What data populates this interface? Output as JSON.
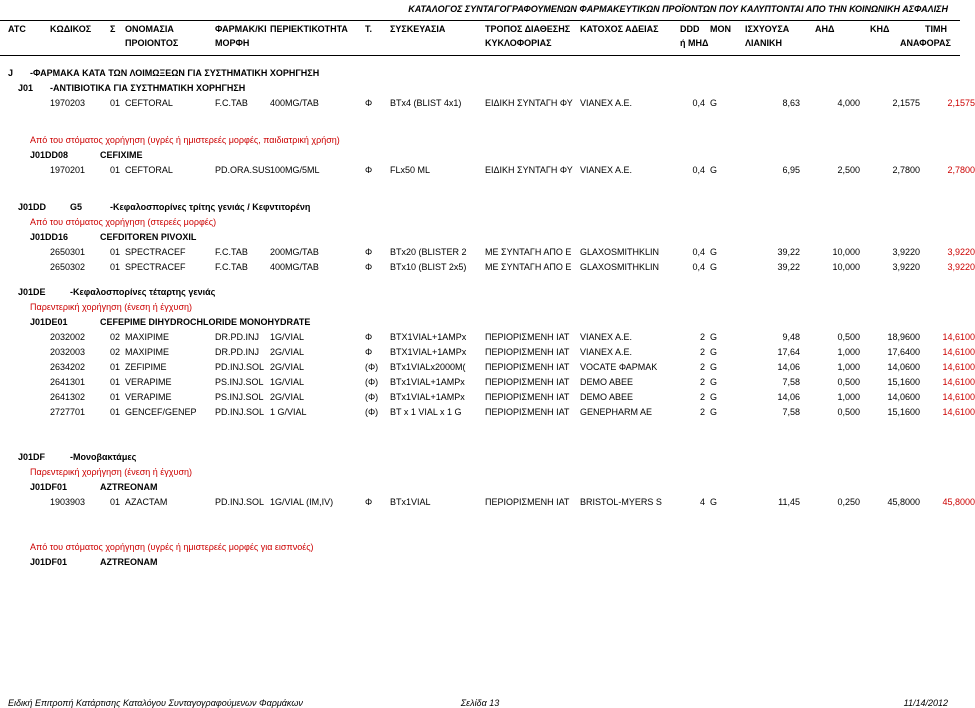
{
  "page_title": "ΚΑΤΑΛΟΓΟΣ ΣΥΝΤΑΓΟΓΡΑΦΟΥΜΕΝΩΝ ΦΑΡΜΑΚΕΥΤΙΚΩΝ ΠΡΟΪΟΝΤΩΝ ΠΟΥ ΚΑΛΥΠΤΟΝΤΑΙ ΑΠΟ ΤΗΝ ΚΟΙΝΩΝΙΚΗ ΑΣΦΑΛΙΣΗ",
  "headers": {
    "atc": "ATC",
    "kodikos": "ΚΩΔΙΚΟΣ",
    "s": "Σ",
    "onomasia": "ΟΝΟΜΑΣΙΑ",
    "product": "ΠΡΟΙΟΝΤΟΣ",
    "farmak": "ΦΑΡΜΑΚ/ΚΙ",
    "morfi": "ΜΟΡΦΗ",
    "periektikotita": "ΠΕΡΙΕΚΤΙΚΟΤΗΤΑ",
    "t": "Τ.",
    "syskevasia": "ΣΥΣΚΕΥΑΣΙΑ",
    "tropos": "ΤΡΟΠΟΣ ΔΙΑΘΕΣΗΣ",
    "kykloforia": "ΚΥΚΛΟΦΟΡΙΑΣ",
    "katoxos": "ΚΑΤΟΧΟΣ ΑΔΕΙΑΣ",
    "ddd": "DDD",
    "mon": "ΜΟΝ",
    "imhd": "ή ΜΗΔ",
    "isxyousa": "ΙΣΧΥΟΥΣΑ",
    "lianiki": "ΛΙΑΝΙΚΗ",
    "ahd": "ΑΗΔ",
    "khd": "ΚΗΔ",
    "timi": "ΤΙΜΗ",
    "anaforas": "ΑΝΑΦΟΡΑΣ"
  },
  "sec_j": {
    "code": "J",
    "text": "-ΦΑΡΜΑΚΑ ΚΑΤΑ ΤΩΝ ΛΟΙΜΩΞΕΩΝ ΓΙΑ ΣΥΣΤΗΜΑΤΙΚΗ ΧΟΡΗΓΗΣΗ"
  },
  "sec_j01": {
    "code": "J01",
    "text": "-ΑΝΤΙΒΙΟΤΙΚΑ ΓΙΑ ΣΥΣΤΗΜΑΤΙΚΗ ΧΟΡΗΓΗΣΗ"
  },
  "r1": {
    "kod": "1970203",
    "s": "01",
    "name": "CEFTORAL",
    "form": "F.C.TAB",
    "per": "400MG/TAB",
    "t": "Φ",
    "sys": "BTx4 (BLIST 4x1)",
    "trop": "ΕΙΔΙΚΗ ΣΥΝΤΑΓΗ ΦΥ",
    "kat": "VIANEX A.E.",
    "ddd": "0,4",
    "mon": "G",
    "isx": "8,63",
    "ahd": "4,000",
    "khd": "2,1575",
    "timi": "2,1575"
  },
  "note1": "Από του στόματος χορήγηση (υγρές ή ημιστερεές μορφές, παιδιατρική χρήση)",
  "sec_j01dd08": {
    "code": "J01DD08",
    "text": "CEFIXIME"
  },
  "r2": {
    "kod": "1970201",
    "s": "01",
    "name": "CEFTORAL",
    "form": "PD.ORA.SUS",
    "per": "100MG/5ML",
    "t": "Φ",
    "sys": "FLx50 ML",
    "trop": "ΕΙΔΙΚΗ ΣΥΝΤΑΓΗ ΦΥ",
    "kat": "VIANEX A.E.",
    "ddd": "0,4",
    "mon": "G",
    "isx": "6,95",
    "ahd": "2,500",
    "khd": "2,7800",
    "timi": "2,7800"
  },
  "sec_j01dd_g5": {
    "code": "J01DD",
    "g": "G5",
    "text": "-Κεφαλοσπορίνες τρίτης γενιάς / Κεφντιτορένη"
  },
  "note2": "Από του στόματος χορήγηση (στερεές μορφές)",
  "sec_j01dd16": {
    "code": "J01DD16",
    "text": "CEFDITOREN PIVOXIL"
  },
  "r3": {
    "kod": "2650301",
    "s": "01",
    "name": "SPECTRACEF",
    "form": "F.C.TAB",
    "per": "200MG/TAB",
    "t": "Φ",
    "sys": "BTx20 (BLISTER 2",
    "trop": "ΜΕ ΣΥΝΤΑΓΗ ΑΠΟ Ε",
    "kat": "GLAXOSMITHKLIN",
    "ddd": "0,4",
    "mon": "G",
    "isx": "39,22",
    "ahd": "10,000",
    "khd": "3,9220",
    "timi": "3,9220"
  },
  "r4": {
    "kod": "2650302",
    "s": "01",
    "name": "SPECTRACEF",
    "form": "F.C.TAB",
    "per": "400MG/TAB",
    "t": "Φ",
    "sys": "BTx10 (BLIST 2x5)",
    "trop": "ΜΕ ΣΥΝΤΑΓΗ ΑΠΟ Ε",
    "kat": "GLAXOSMITHKLIN",
    "ddd": "0,4",
    "mon": "G",
    "isx": "39,22",
    "ahd": "10,000",
    "khd": "3,9220",
    "timi": "3,9220"
  },
  "sec_j01de": {
    "code": "J01DE",
    "text": "-Κεφαλοσπορίνες τέταρτης γενιάς"
  },
  "note3": "Παρεντερική χορήγηση (ένεση ή έγχυση)",
  "sec_j01de01": {
    "code": "J01DE01",
    "text": "CEFEPIME DIHYDROCHLORIDE MONOHYDRATE"
  },
  "r5": {
    "kod": "2032002",
    "s": "02",
    "name": "MAXIPIME",
    "form": "DR.PD.INJ",
    "per": "1G/VIAL",
    "t": "Φ",
    "sys": "BTX1VIAL+1AMPx",
    "trop": "ΠΕΡΙΟΡΙΣΜΕΝΗ ΙΑΤ",
    "kat": "VIANEX A.E.",
    "ddd": "2",
    "mon": "G",
    "isx": "9,48",
    "ahd": "0,500",
    "khd": "18,9600",
    "timi": "14,6100"
  },
  "r6": {
    "kod": "2032003",
    "s": "02",
    "name": "MAXIPIME",
    "form": "DR.PD.INJ",
    "per": "2G/VIAL",
    "t": "Φ",
    "sys": "BTX1VIAL+1AMPx",
    "trop": "ΠΕΡΙΟΡΙΣΜΕΝΗ ΙΑΤ",
    "kat": "VIANEX A.E.",
    "ddd": "2",
    "mon": "G",
    "isx": "17,64",
    "ahd": "1,000",
    "khd": "17,6400",
    "timi": "14,6100"
  },
  "r7": {
    "kod": "2634202",
    "s": "01",
    "name": "ZEFIPIME",
    "form": "PD.INJ.SOL",
    "per": "2G/VIAL",
    "t": "(Φ)",
    "sys": "BTx1VIALx2000M(",
    "trop": "ΠΕΡΙΟΡΙΣΜΕΝΗ ΙΑΤ",
    "kat": "VOCATE ΦΑΡΜΑΚ",
    "ddd": "2",
    "mon": "G",
    "isx": "14,06",
    "ahd": "1,000",
    "khd": "14,0600",
    "timi": "14,6100"
  },
  "r8": {
    "kod": "2641301",
    "s": "01",
    "name": "VERAPIME",
    "form": "PS.INJ.SOL",
    "per": "1G/VIAL",
    "t": "(Φ)",
    "sys": "BTx1VIAL+1AMPx",
    "trop": "ΠΕΡΙΟΡΙΣΜΕΝΗ ΙΑΤ",
    "kat": "DEMO ABEE",
    "ddd": "2",
    "mon": "G",
    "isx": "7,58",
    "ahd": "0,500",
    "khd": "15,1600",
    "timi": "14,6100"
  },
  "r9": {
    "kod": "2641302",
    "s": "01",
    "name": "VERAPIME",
    "form": "PS.INJ.SOL",
    "per": "2G/VIAL",
    "t": "(Φ)",
    "sys": "BTx1VIAL+1AMPx",
    "trop": "ΠΕΡΙΟΡΙΣΜΕΝΗ ΙΑΤ",
    "kat": "DEMO ABEE",
    "ddd": "2",
    "mon": "G",
    "isx": "14,06",
    "ahd": "1,000",
    "khd": "14,0600",
    "timi": "14,6100"
  },
  "r10": {
    "kod": "2727701",
    "s": "01",
    "name": "GENCEF/GENEP",
    "form": "PD.INJ.SOL",
    "per": "1 G/VIAL",
    "t": "(Φ)",
    "sys": "BT x 1 VIAL x 1 G",
    "trop": "ΠΕΡΙΟΡΙΣΜΕΝΗ ΙΑΤ",
    "kat": "GENEPHARM AE",
    "ddd": "2",
    "mon": "G",
    "isx": "7,58",
    "ahd": "0,500",
    "khd": "15,1600",
    "timi": "14,6100"
  },
  "sec_j01df": {
    "code": "J01DF",
    "text": "-Μονοβακτάμες"
  },
  "note4": "Παρεντερική χορήγηση (ένεση ή έγχυση)",
  "sec_j01df01": {
    "code": "J01DF01",
    "text": "AZTREONAM"
  },
  "r11": {
    "kod": "1903903",
    "s": "01",
    "name": "AZACTAM",
    "form": "PD.INJ.SOL",
    "per": "1G/VIAL (IM,IV)",
    "t": "Φ",
    "sys": "BTx1VIAL",
    "trop": "ΠΕΡΙΟΡΙΣΜΕΝΗ ΙΑΤ",
    "kat": "BRISTOL-MYERS S",
    "ddd": "4",
    "mon": "G",
    "isx": "11,45",
    "ahd": "0,250",
    "khd": "45,8000",
    "timi": "45,8000"
  },
  "note5": "Από του στόματος χορήγηση (υγρές ή ημιστερεές μορφές για εισπνοές)",
  "sec_j01df01b": {
    "code": "J01DF01",
    "text": "AZTREONAM"
  },
  "footer": {
    "left": "Ειδική Επιτροπή Κατάρτισης Καταλόγου Συνταγογραφούμενων Φαρμάκων",
    "center": "Σελίδα 13",
    "right": "11/14/2012"
  },
  "cols": {
    "atc": 8,
    "kod": 50,
    "s": 110,
    "name": 125,
    "form": 215,
    "per": 270,
    "t": 365,
    "sys": 390,
    "trop": 485,
    "kat": 580,
    "ddd": 680,
    "mon": 710,
    "isx": 760,
    "ahd": 815,
    "khd": 870,
    "timi": 925
  }
}
